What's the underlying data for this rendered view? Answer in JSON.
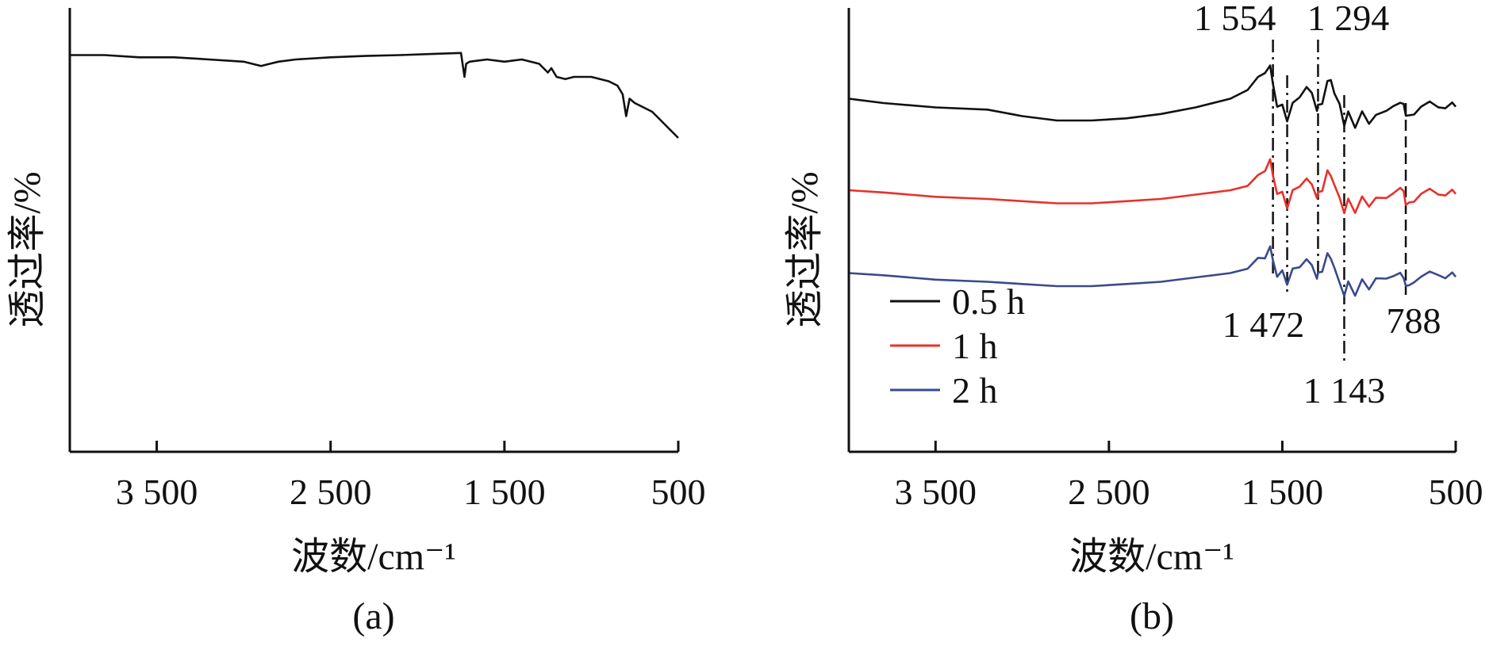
{
  "chart_data": [
    {
      "panel": "(a)",
      "type": "line",
      "xlabel": "波数/cm⁻¹",
      "ylabel": "透过率/%",
      "xlim": [
        4000,
        500
      ],
      "x_reversed": true,
      "x_ticks": [
        3500,
        2500,
        1500,
        500
      ],
      "x_tick_labels": [
        "3 500",
        "2 500",
        "1 500",
        "500"
      ],
      "ylim": [
        0,
        100
      ],
      "y_ticks_labeled": false,
      "series": [
        {
          "color": "#111111",
          "x": [
            4000,
            3800,
            3600,
            3400,
            3200,
            3000,
            2900,
            2850,
            2800,
            2700,
            2500,
            2300,
            2100,
            1900,
            1750,
            1730,
            1720,
            1700,
            1600,
            1500,
            1400,
            1300,
            1250,
            1230,
            1200,
            1150,
            1100,
            1000,
            900,
            850,
            820,
            800,
            780,
            750,
            700,
            650,
            600,
            550,
            500
          ],
          "y": [
            91,
            91,
            90.5,
            90.5,
            90,
            89.5,
            88.5,
            89,
            89.5,
            90,
            90.5,
            90.8,
            91,
            91.3,
            91.5,
            86,
            89,
            89.5,
            90,
            89.5,
            90,
            89,
            87,
            88,
            86,
            85.5,
            86,
            86,
            85,
            84,
            82,
            77,
            81,
            80,
            79,
            78,
            76,
            74,
            72
          ]
        }
      ]
    },
    {
      "panel": "(b)",
      "type": "line",
      "xlabel": "波数/cm⁻¹",
      "ylabel": "透过率/%",
      "xlim": [
        4000,
        500
      ],
      "x_reversed": true,
      "x_ticks": [
        3500,
        2500,
        1500,
        500
      ],
      "x_tick_labels": [
        "3 500",
        "2 500",
        "1 500",
        "500"
      ],
      "ylim": [
        0,
        100
      ],
      "y_ticks_labeled": false,
      "legend": {
        "placement": "bottom-left",
        "entries": [
          {
            "label": "0.5 h",
            "color": "#111111"
          },
          {
            "label": "1 h",
            "color": "#e8312a"
          },
          {
            "label": "2 h",
            "color": "#3a4a8c"
          }
        ]
      },
      "series": [
        {
          "name": "0.5 h",
          "color": "#111111",
          "x": [
            4000,
            3800,
            3500,
            3200,
            3000,
            2800,
            2600,
            2400,
            2200,
            2000,
            1800,
            1700,
            1640,
            1600,
            1570,
            1554,
            1530,
            1500,
            1472,
            1440,
            1400,
            1360,
            1330,
            1300,
            1294,
            1270,
            1240,
            1220,
            1200,
            1170,
            1143,
            1120,
            1080,
            1040,
            1000,
            960,
            900,
            860,
            820,
            800,
            788,
            770,
            740,
            700,
            650,
            600,
            560,
            520,
            500
          ],
          "y": [
            81,
            80,
            79,
            78.5,
            77,
            76,
            76,
            76.5,
            77.5,
            79,
            81,
            83,
            85,
            87.5,
            88.5,
            84,
            80,
            78.5,
            77,
            79,
            82,
            83.5,
            82,
            79,
            78.5,
            81,
            84,
            86,
            82,
            79.5,
            75.5,
            77,
            75.5,
            77,
            76,
            77,
            78,
            80,
            79,
            81,
            76,
            78,
            77,
            79,
            81,
            78,
            80,
            79,
            80
          ]
        },
        {
          "name": "1 h",
          "color": "#e8312a",
          "x": [
            4000,
            3800,
            3500,
            3200,
            3000,
            2800,
            2600,
            2400,
            2200,
            2000,
            1800,
            1700,
            1640,
            1600,
            1570,
            1554,
            1530,
            1500,
            1472,
            1440,
            1400,
            1360,
            1330,
            1300,
            1294,
            1270,
            1240,
            1220,
            1200,
            1170,
            1143,
            1120,
            1080,
            1040,
            1000,
            960,
            900,
            860,
            820,
            800,
            788,
            770,
            740,
            700,
            650,
            600,
            560,
            520,
            500
          ],
          "y": [
            60,
            59.5,
            58.5,
            58,
            57.5,
            57,
            57,
            57.5,
            58,
            59,
            60,
            61,
            62.5,
            65,
            67,
            63,
            60,
            58.5,
            57,
            59,
            61.5,
            62.5,
            61,
            59,
            58.5,
            61,
            63.5,
            64,
            61,
            58,
            55.5,
            57,
            56,
            57.5,
            57,
            58,
            58,
            60,
            59.5,
            61,
            55.5,
            58,
            57,
            59,
            61,
            58,
            60,
            59,
            60
          ]
        },
        {
          "name": "2 h",
          "color": "#3a4a8c",
          "x": [
            4000,
            3800,
            3500,
            3200,
            3000,
            2800,
            2600,
            2400,
            2200,
            2000,
            1800,
            1700,
            1640,
            1600,
            1570,
            1554,
            1530,
            1500,
            1472,
            1440,
            1400,
            1360,
            1330,
            1300,
            1294,
            1270,
            1240,
            1220,
            1200,
            1170,
            1143,
            1120,
            1080,
            1040,
            1000,
            960,
            900,
            860,
            820,
            800,
            788,
            770,
            740,
            700,
            650,
            600,
            560,
            520,
            500
          ],
          "y": [
            41,
            40.5,
            39.5,
            39,
            38.5,
            38,
            38,
            38.5,
            39,
            40,
            41,
            42,
            43.5,
            45,
            47,
            43.5,
            41,
            40.5,
            39.5,
            41,
            43,
            44,
            42.5,
            40.5,
            40,
            42.5,
            44.5,
            45,
            42,
            38.5,
            36.5,
            38,
            37,
            38.5,
            38,
            39.5,
            39.5,
            41,
            40,
            41,
            37,
            39,
            38.5,
            40,
            42,
            39.5,
            41,
            40,
            41
          ]
        }
      ],
      "annotations": [
        {
          "label": "1 554",
          "x": 1554,
          "line": "dash-dot",
          "label_position": "top"
        },
        {
          "label": "1 472",
          "x": 1472,
          "line": "dash-dot",
          "label_position": "bottom"
        },
        {
          "label": "1 294",
          "x": 1294,
          "line": "dash-dot",
          "label_position": "top"
        },
        {
          "label": "1 143",
          "x": 1143,
          "line": "dash-dot",
          "label_position": "bottom"
        },
        {
          "label": "788",
          "x": 788,
          "line": "dashed",
          "label_position": "bottom"
        }
      ]
    }
  ]
}
